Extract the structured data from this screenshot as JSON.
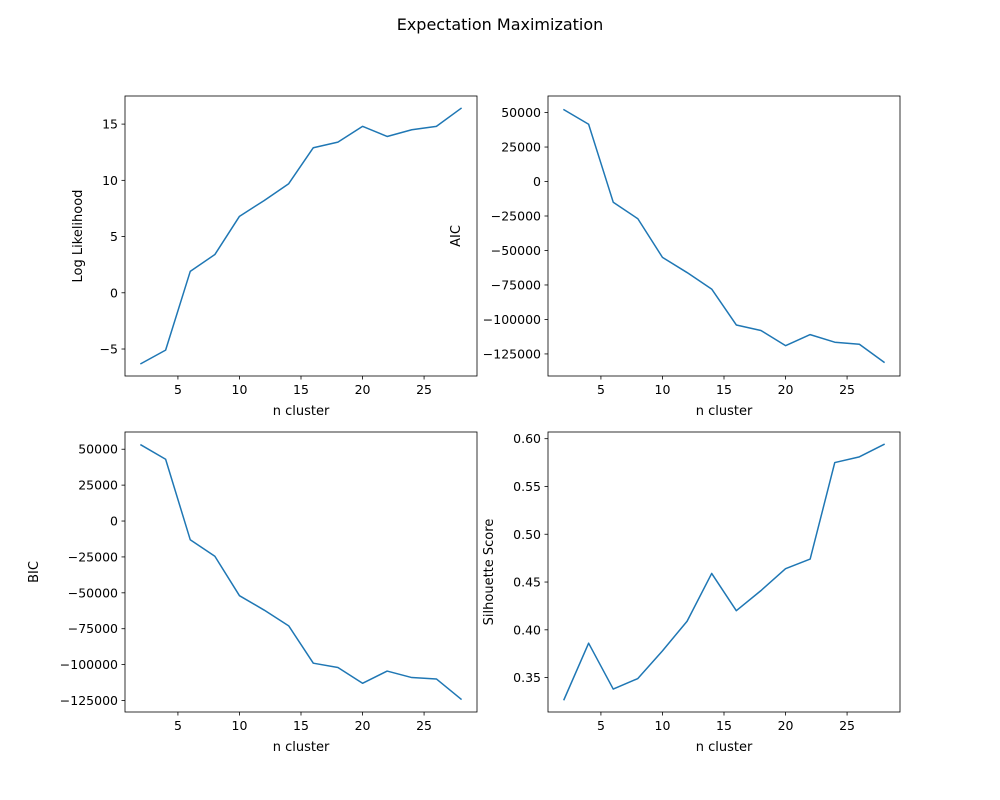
{
  "title": "Expectation Maximization",
  "colors": {
    "line": "#1f77b4",
    "axes": "#000000",
    "background": "#ffffff"
  },
  "chart_data": [
    {
      "type": "line",
      "xlabel": "n cluster",
      "ylabel": "Log Likelihood",
      "xlim": [
        0.7,
        29.3
      ],
      "ylim": [
        -7.4,
        17.5
      ],
      "xticks": [
        5,
        10,
        15,
        20,
        25
      ],
      "yticks": [
        -5,
        0,
        5,
        10,
        15
      ],
      "grid": false,
      "x": [
        2,
        4,
        6,
        8,
        10,
        12,
        14,
        16,
        18,
        20,
        22,
        24,
        26,
        28
      ],
      "values": [
        -6.3,
        -5.1,
        1.9,
        3.4,
        6.8,
        8.2,
        9.7,
        12.9,
        13.4,
        14.8,
        13.9,
        14.5,
        14.8,
        16.4
      ]
    },
    {
      "type": "line",
      "xlabel": "n cluster",
      "ylabel": "AIC",
      "xlim": [
        0.7,
        29.3
      ],
      "ylim": [
        -141000,
        62000
      ],
      "xticks": [
        5,
        10,
        15,
        20,
        25
      ],
      "yticks": [
        50000,
        25000,
        0,
        -25000,
        -50000,
        -75000,
        -100000,
        -125000
      ],
      "ytick_labels": [
        "50000",
        "25000",
        "0",
        "−25000",
        "−50000",
        "−75000",
        "−100000",
        "−125000"
      ],
      "grid": false,
      "x": [
        2,
        4,
        6,
        8,
        10,
        12,
        14,
        16,
        18,
        20,
        22,
        24,
        26,
        28
      ],
      "values": [
        52000,
        41500,
        -15000,
        -27000,
        -55000,
        -66000,
        -78000,
        -104000,
        -108000,
        -119000,
        -111000,
        -116500,
        -118000,
        -131000
      ]
    },
    {
      "type": "line",
      "xlabel": "n cluster",
      "ylabel": "BIC",
      "xlim": [
        0.7,
        29.3
      ],
      "ylim": [
        -133000,
        62000
      ],
      "xticks": [
        5,
        10,
        15,
        20,
        25
      ],
      "yticks": [
        50000,
        25000,
        0,
        -25000,
        -50000,
        -75000,
        -100000,
        -125000
      ],
      "ytick_labels": [
        "50000",
        "25000",
        "0",
        "−25000",
        "−50000",
        "−75000",
        "−100000",
        "−125000"
      ],
      "grid": false,
      "x": [
        2,
        4,
        6,
        8,
        10,
        12,
        14,
        16,
        18,
        20,
        22,
        24,
        26,
        28
      ],
      "values": [
        53000,
        43000,
        -13000,
        -24500,
        -52000,
        -62000,
        -73000,
        -99000,
        -102000,
        -113000,
        -104500,
        -109000,
        -110000,
        -124000
      ]
    },
    {
      "type": "line",
      "xlabel": "n cluster",
      "ylabel": "Silhouette Score",
      "xlim": [
        0.7,
        29.3
      ],
      "ylim": [
        0.314,
        0.607
      ],
      "xticks": [
        5,
        10,
        15,
        20,
        25
      ],
      "yticks": [
        0.35,
        0.4,
        0.45,
        0.5,
        0.55,
        0.6
      ],
      "ytick_labels": [
        "0.35",
        "0.40",
        "0.45",
        "0.50",
        "0.55",
        "0.60"
      ],
      "grid": false,
      "x": [
        2,
        4,
        6,
        8,
        10,
        12,
        14,
        16,
        18,
        20,
        22,
        24,
        26,
        28
      ],
      "values": [
        0.327,
        0.386,
        0.338,
        0.349,
        0.378,
        0.409,
        0.459,
        0.42,
        0.441,
        0.464,
        0.474,
        0.575,
        0.581,
        0.594
      ]
    }
  ]
}
